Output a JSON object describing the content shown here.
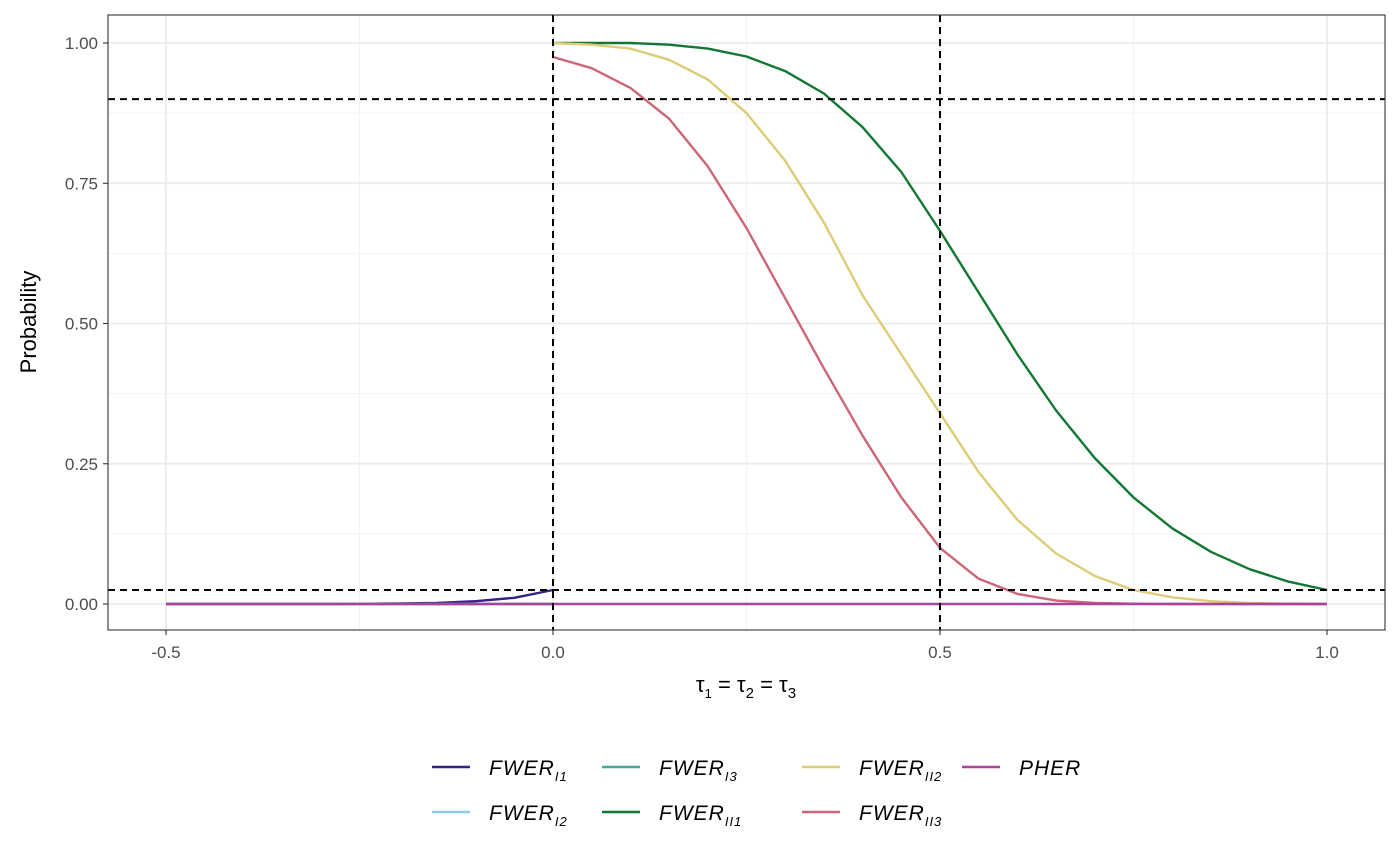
{
  "chart_data": {
    "type": "line",
    "xlabel": "τ1 = τ2 = τ3",
    "xlabel_parts": {
      "p1": "τ",
      "s1": "1",
      "eq1": " = τ",
      "s2": "2",
      "eq2": " = τ",
      "s3": "3"
    },
    "ylabel": "Probability",
    "xlim": [
      -0.5,
      1.0
    ],
    "ylim": [
      0,
      1
    ],
    "x_ticks": [
      -0.5,
      0.0,
      0.5,
      1.0
    ],
    "x_tick_labels": [
      "-0.5",
      "0.0",
      "0.5",
      "1.0"
    ],
    "y_ticks": [
      0,
      0.25,
      0.5,
      0.75,
      1.0
    ],
    "y_tick_labels": [
      "0.00",
      "0.25",
      "0.50",
      "0.75",
      "1.00"
    ],
    "grid": true,
    "reference_lines": {
      "horizontal": [
        0.9,
        0.025
      ],
      "vertical": [
        0.0,
        0.5
      ]
    },
    "legend_position": "bottom",
    "series": [
      {
        "name": "FWER_I1",
        "label_main": "FWER",
        "label_sub": "I1",
        "color": "#332288",
        "x": [
          -0.5,
          -0.4,
          -0.3,
          -0.25,
          -0.2,
          -0.15,
          -0.1,
          -0.05,
          0.0
        ],
        "y": [
          0.0,
          0.0,
          0.0,
          0.0003,
          0.001,
          0.002,
          0.005,
          0.011,
          0.025
        ]
      },
      {
        "name": "FWER_I2",
        "label_main": "FWER",
        "label_sub": "I2",
        "color": "#88CCEE",
        "x": [
          -0.5,
          -0.25,
          -0.1,
          0.0
        ],
        "y": [
          0.0,
          0.0,
          0.0,
          0.0
        ]
      },
      {
        "name": "FWER_I3",
        "label_main": "FWER",
        "label_sub": "I3",
        "color": "#44AA99",
        "x": [
          -0.5,
          -0.25,
          -0.1,
          0.0
        ],
        "y": [
          0.0,
          0.0,
          0.0,
          0.0
        ]
      },
      {
        "name": "FWER_II1",
        "label_main": "FWER",
        "label_sub": "II1",
        "color": "#117733",
        "x": [
          0.0,
          0.05,
          0.1,
          0.15,
          0.2,
          0.25,
          0.3,
          0.35,
          0.4,
          0.45,
          0.5,
          0.55,
          0.6,
          0.65,
          0.7,
          0.75,
          0.8,
          0.85,
          0.9,
          0.95,
          1.0
        ],
        "y": [
          1.0,
          1.0,
          1.0,
          0.997,
          0.99,
          0.976,
          0.95,
          0.91,
          0.85,
          0.77,
          0.665,
          0.555,
          0.445,
          0.345,
          0.26,
          0.19,
          0.135,
          0.093,
          0.062,
          0.04,
          0.025
        ]
      },
      {
        "name": "FWER_II2",
        "label_main": "FWER",
        "label_sub": "II2",
        "color": "#DDCC77",
        "x": [
          0.0,
          0.05,
          0.1,
          0.15,
          0.2,
          0.25,
          0.3,
          0.35,
          0.4,
          0.45,
          0.5,
          0.55,
          0.6,
          0.65,
          0.7,
          0.75,
          0.8,
          0.85,
          0.9,
          0.95,
          1.0
        ],
        "y": [
          1.0,
          0.997,
          0.99,
          0.97,
          0.935,
          0.875,
          0.79,
          0.68,
          0.55,
          0.445,
          0.34,
          0.235,
          0.15,
          0.09,
          0.05,
          0.025,
          0.012,
          0.005,
          0.002,
          0.0005,
          0.0
        ]
      },
      {
        "name": "FWER_II3",
        "label_main": "FWER",
        "label_sub": "II3",
        "color": "#CC6677",
        "x": [
          0.0,
          0.05,
          0.1,
          0.15,
          0.2,
          0.25,
          0.3,
          0.35,
          0.4,
          0.45,
          0.5,
          0.55,
          0.6,
          0.65,
          0.7,
          0.75,
          0.8,
          0.85,
          0.9,
          0.95,
          1.0
        ],
        "y": [
          0.975,
          0.955,
          0.92,
          0.865,
          0.78,
          0.67,
          0.545,
          0.42,
          0.3,
          0.19,
          0.1,
          0.045,
          0.018,
          0.006,
          0.002,
          0.0005,
          0.0,
          0.0,
          0.0,
          0.0,
          0.0
        ]
      },
      {
        "name": "PHER",
        "label_main": "PHER",
        "label_sub": "",
        "color": "#AA4499",
        "x": [
          -0.5,
          0.0,
          0.5,
          1.0
        ],
        "y": [
          0.0,
          0.0,
          0.0,
          0.0
        ]
      }
    ]
  }
}
